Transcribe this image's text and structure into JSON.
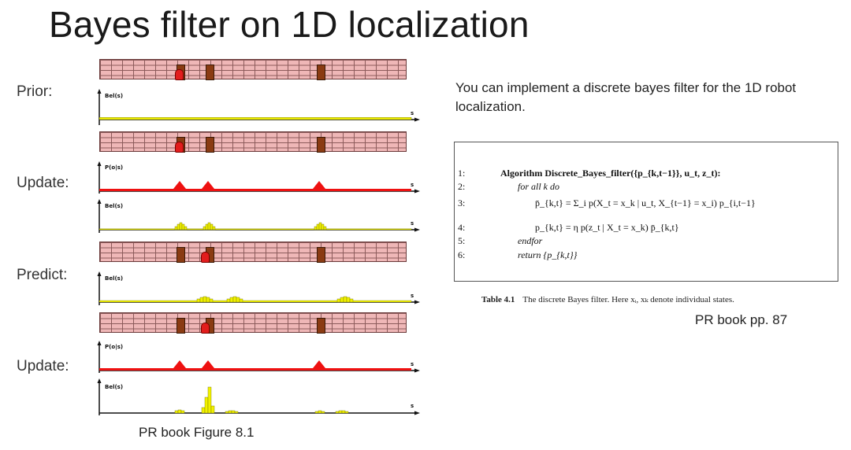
{
  "title": "Bayes filter on 1D localization",
  "row_labels": {
    "prior": "Prior:",
    "update1": "Update:",
    "predict": "Predict:",
    "update2": "Update:"
  },
  "axis_labels": {
    "bel": "Bel(s)",
    "p_obs": "P(o|s)",
    "s": "s"
  },
  "figure_caption": "PR book Figure 8.1",
  "intro_text": "You can implement a discrete bayes filter for the 1D robot localization.",
  "algorithm": {
    "lines": [
      {
        "num": "1:",
        "text": "Algorithm Discrete_Bayes_filter({p_{k,t−1}}, u_t, z_t):"
      },
      {
        "num": "2:",
        "text": "for all k do"
      },
      {
        "num": "3:",
        "text": "p̄_{k,t} = Σ_i p(X_t = x_k | u_t, X_{t−1} = x_i) p_{i,t−1}"
      },
      {
        "num": "4:",
        "text": "p_{k,t} = η p(z_t | X_t = x_k) p̄_{k,t}"
      },
      {
        "num": "5:",
        "text": "endfor"
      },
      {
        "num": "6:",
        "text": "return {p_{k,t}}"
      }
    ]
  },
  "table_caption": {
    "label": "Table 4.1",
    "text": "The discrete Bayes filter. Here xᵢ, xₖ denote individual states."
  },
  "reference": "PR book pp. 87",
  "colors": {
    "wall": "#efb7b7",
    "door": "#8a3b12",
    "robot": "#e21d1d",
    "belief": "#f2f200",
    "observation": "#ee1111"
  }
}
